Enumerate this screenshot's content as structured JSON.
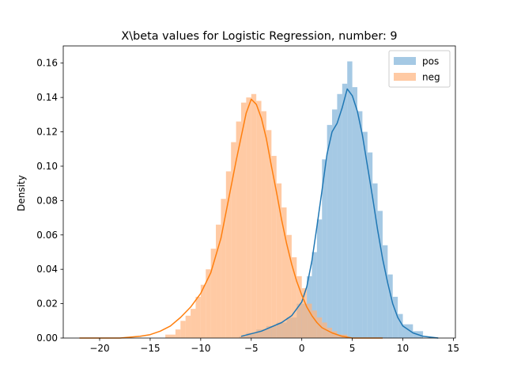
{
  "chart_data": {
    "type": "histogram",
    "title": "X\\beta values for Logistic Regression, number: 9",
    "xlabel": "",
    "ylabel": "Density",
    "xlim": [
      -23.6,
      15.2
    ],
    "ylim": [
      0,
      0.17
    ],
    "xticks": [
      -20,
      -15,
      -10,
      -5,
      0,
      5,
      10,
      15
    ],
    "xtick_labels": [
      "−20",
      "−15",
      "−10",
      "−5",
      "0",
      "5",
      "10",
      "15"
    ],
    "yticks": [
      0.0,
      0.02,
      0.04,
      0.06,
      0.08,
      0.1,
      0.12,
      0.14,
      0.16
    ],
    "ytick_labels": [
      "0.00",
      "0.02",
      "0.04",
      "0.06",
      "0.08",
      "0.10",
      "0.12",
      "0.14",
      "0.16"
    ],
    "grid": false,
    "legend_position": "top-right",
    "series": [
      {
        "name": "pos",
        "color": "#1f77b4",
        "fill_color": "#7fb2d8",
        "fill_opacity": 0.7,
        "bin_edges": [
          -6.2,
          -5.5,
          -4.5,
          -3.5,
          -2.5,
          -1.5,
          -0.5,
          0.5,
          1.0,
          1.5,
          2.0,
          2.5,
          3.0,
          3.5,
          4.0,
          4.5,
          5.0,
          5.5,
          6.0,
          6.5,
          7.0,
          7.5,
          8.0,
          8.5,
          9.0,
          9.5,
          10.0,
          11.0,
          12.0
        ],
        "densities": [
          0.001,
          0.003,
          0.005,
          0.007,
          0.009,
          0.012,
          0.02,
          0.036,
          0.05,
          0.069,
          0.104,
          0.124,
          0.133,
          0.142,
          0.148,
          0.161,
          0.146,
          0.132,
          0.12,
          0.108,
          0.09,
          0.074,
          0.054,
          0.037,
          0.024,
          0.014,
          0.008,
          0.004
        ],
        "kde_x": [
          -6,
          -4,
          -2,
          -1,
          0,
          0.5,
          1,
          1.5,
          2,
          2.5,
          3,
          3.5,
          4,
          4.5,
          5,
          5.5,
          6,
          6.5,
          7,
          7.5,
          8,
          8.5,
          9,
          9.5,
          10,
          11,
          12,
          13.5
        ],
        "kde_y": [
          0.001,
          0.004,
          0.009,
          0.013,
          0.021,
          0.03,
          0.045,
          0.065,
          0.086,
          0.107,
          0.12,
          0.125,
          0.134,
          0.145,
          0.141,
          0.132,
          0.118,
          0.1,
          0.082,
          0.063,
          0.046,
          0.032,
          0.02,
          0.012,
          0.007,
          0.003,
          0.001,
          0.0
        ]
      },
      {
        "name": "neg",
        "color": "#ff7f0e",
        "fill_color": "#ffb47d",
        "fill_opacity": 0.7,
        "bin_edges": [
          -13.5,
          -12.5,
          -12.0,
          -11.5,
          -11.0,
          -10.5,
          -10.0,
          -9.5,
          -9.0,
          -8.5,
          -8.0,
          -7.5,
          -7.0,
          -6.5,
          -6.0,
          -5.5,
          -5.0,
          -4.5,
          -4.0,
          -3.5,
          -3.0,
          -2.5,
          -2.0,
          -1.5,
          -1.0,
          -0.5,
          0.0,
          0.5,
          1.0,
          1.5,
          2.0,
          2.5,
          3.0,
          3.5,
          4.5
        ],
        "densities": [
          0.002,
          0.005,
          0.01,
          0.013,
          0.017,
          0.024,
          0.031,
          0.04,
          0.052,
          0.066,
          0.081,
          0.097,
          0.114,
          0.126,
          0.137,
          0.14,
          0.142,
          0.138,
          0.132,
          0.121,
          0.106,
          0.09,
          0.076,
          0.06,
          0.047,
          0.036,
          0.029,
          0.02,
          0.016,
          0.012,
          0.009,
          0.006,
          0.004,
          0.002
        ],
        "kde_x": [
          -22,
          -20,
          -18,
          -16,
          -15,
          -14,
          -13,
          -12,
          -11,
          -10,
          -9,
          -8,
          -7,
          -6.5,
          -6,
          -5.5,
          -5,
          -4.5,
          -4,
          -3.5,
          -3,
          -2.5,
          -2,
          -1.5,
          -1,
          -0.5,
          0,
          0.5,
          1,
          1.5,
          2,
          3,
          4,
          5,
          6,
          8
        ],
        "kde_y": [
          0.0,
          0.0,
          0.0,
          0.001,
          0.002,
          0.004,
          0.007,
          0.012,
          0.018,
          0.026,
          0.038,
          0.058,
          0.088,
          0.103,
          0.117,
          0.131,
          0.139,
          0.136,
          0.128,
          0.116,
          0.1,
          0.085,
          0.069,
          0.055,
          0.043,
          0.033,
          0.025,
          0.018,
          0.013,
          0.009,
          0.006,
          0.003,
          0.001,
          0.0,
          0.0,
          0.0
        ]
      }
    ]
  }
}
